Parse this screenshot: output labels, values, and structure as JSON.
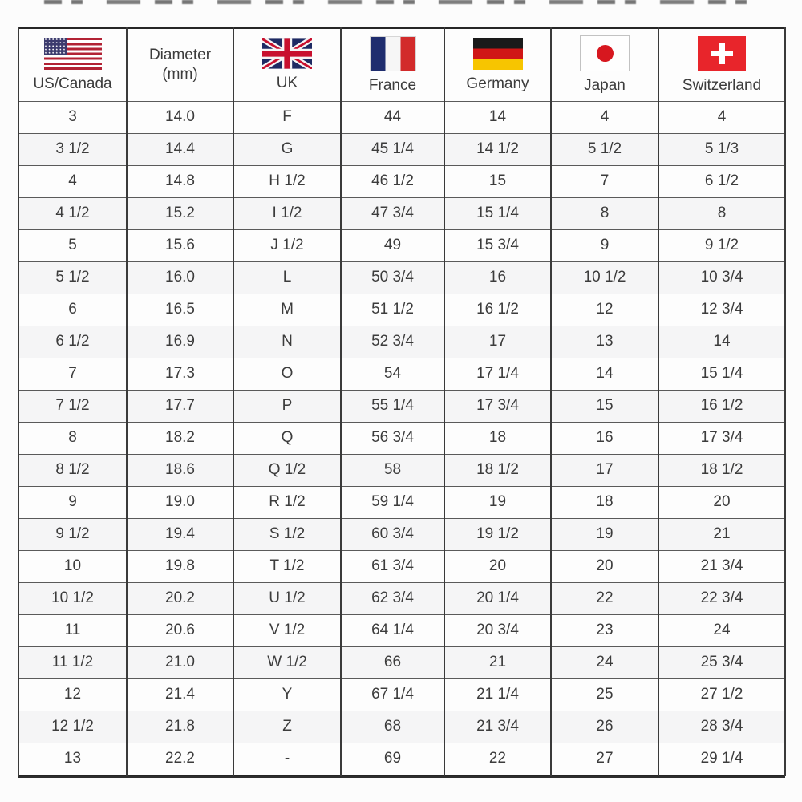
{
  "table": {
    "title": "ring-size-conversion-chart",
    "columns": [
      {
        "id": "us",
        "label": "US/Canada",
        "flag": "us-flag"
      },
      {
        "id": "diameter",
        "label": "Diameter (mm)",
        "label_line1": "Diameter",
        "label_line2": "(mm)",
        "flag": null
      },
      {
        "id": "uk",
        "label": "UK",
        "flag": "uk-flag"
      },
      {
        "id": "france",
        "label": "France",
        "flag": "france-flag"
      },
      {
        "id": "germany",
        "label": "Germany",
        "flag": "germany-flag"
      },
      {
        "id": "japan",
        "label": "Japan",
        "flag": "japan-flag"
      },
      {
        "id": "switzerland",
        "label": "Switzerland",
        "flag": "switzerland-flag"
      }
    ],
    "rows": [
      [
        "3",
        "14.0",
        "F",
        "44",
        "14",
        "4",
        "4"
      ],
      [
        "3 1/2",
        "14.4",
        "G",
        "45 1/4",
        "14 1/2",
        "5 1/2",
        "5 1/3"
      ],
      [
        "4",
        "14.8",
        "H 1/2",
        "46 1/2",
        "15",
        "7",
        "6 1/2"
      ],
      [
        "4 1/2",
        "15.2",
        "I 1/2",
        "47 3/4",
        "15 1/4",
        "8",
        "8"
      ],
      [
        "5",
        "15.6",
        "J 1/2",
        "49",
        "15 3/4",
        "9",
        "9 1/2"
      ],
      [
        "5 1/2",
        "16.0",
        "L",
        "50 3/4",
        "16",
        "10 1/2",
        "10 3/4"
      ],
      [
        "6",
        "16.5",
        "M",
        "51 1/2",
        "16 1/2",
        "12",
        "12 3/4"
      ],
      [
        "6 1/2",
        "16.9",
        "N",
        "52 3/4",
        "17",
        "13",
        "14"
      ],
      [
        "7",
        "17.3",
        "O",
        "54",
        "17 1/4",
        "14",
        "15 1/4"
      ],
      [
        "7 1/2",
        "17.7",
        "P",
        "55 1/4",
        "17 3/4",
        "15",
        "16 1/2"
      ],
      [
        "8",
        "18.2",
        "Q",
        "56 3/4",
        "18",
        "16",
        "17 3/4"
      ],
      [
        "8 1/2",
        "18.6",
        "Q 1/2",
        "58",
        "18 1/2",
        "17",
        "18 1/2"
      ],
      [
        "9",
        "19.0",
        "R 1/2",
        "59 1/4",
        "19",
        "18",
        "20"
      ],
      [
        "9 1/2",
        "19.4",
        "S 1/2",
        "60 3/4",
        "19 1/2",
        "19",
        "21"
      ],
      [
        "10",
        "19.8",
        "T 1/2",
        "61 3/4",
        "20",
        "20",
        "21 3/4"
      ],
      [
        "10 1/2",
        "20.2",
        "U 1/2",
        "62 3/4",
        "20 1/4",
        "22",
        "22 3/4"
      ],
      [
        "11",
        "20.6",
        "V 1/2",
        "64 1/4",
        "20 3/4",
        "23",
        "24"
      ],
      [
        "11 1/2",
        "21.0",
        "W 1/2",
        "66",
        "21",
        "24",
        "25 3/4"
      ],
      [
        "12",
        "21.4",
        "Y",
        "67 1/4",
        "21 1/4",
        "25",
        "27 1/2"
      ],
      [
        "12 1/2",
        "21.8",
        "Z",
        "68",
        "21 3/4",
        "26",
        "28 3/4"
      ],
      [
        "13",
        "22.2",
        "-",
        "69",
        "22",
        "27",
        "29 1/4"
      ]
    ]
  },
  "colors": {
    "page_background": "#fcfcfc",
    "table_border": "#262626",
    "cell_text": "#3c3c3c"
  }
}
